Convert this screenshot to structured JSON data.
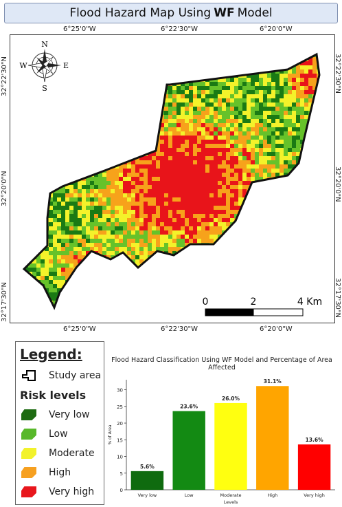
{
  "title": {
    "prefix": "Flood Hazard Map Using",
    "bold": "WF",
    "suffix": "Model"
  },
  "map": {
    "top_lon_labels": [
      "6°25'0\"W",
      "6°22'30\"W",
      "6°20'0\"W"
    ],
    "bottom_lon_labels": [
      "6°25'0\"W",
      "6°22'30\"W",
      "6°20'0\"W"
    ],
    "left_lat_labels": [
      "32°22'30\"N",
      "32°20'0\"N",
      "32°17'30\"N"
    ],
    "right_lat_labels": [
      "32°22'30\"N",
      "32°20'0\"N",
      "32°17'30\"N"
    ],
    "compass": {
      "N": "N",
      "S": "S",
      "E": "E",
      "W": "W"
    },
    "scale": {
      "ticks": [
        "0",
        "2",
        "4 Km"
      ]
    },
    "colors": {
      "very_low": "#1a7a14",
      "low": "#66c22a",
      "moderate": "#f4f22a",
      "high": "#f7a21b",
      "very_high": "#e8141a"
    }
  },
  "legend": {
    "title": "Legend:",
    "study_area": "Study area",
    "risk_title": "Risk levels",
    "items": [
      {
        "label": "Very low",
        "color": "#1e6b12"
      },
      {
        "label": "Low",
        "color": "#58b82a"
      },
      {
        "label": "Moderate",
        "color": "#f2f22c"
      },
      {
        "label": "High",
        "color": "#f6a020"
      },
      {
        "label": "Very high",
        "color": "#e8161c"
      }
    ]
  },
  "chart_data": {
    "type": "bar",
    "title": "Flood Hazard Classification Using WF Model and Percentage of Area Affected",
    "xlabel": "Levels",
    "ylabel": "% of Area",
    "categories": [
      "Very low",
      "Low",
      "Moderate",
      "High",
      "Very high"
    ],
    "values": [
      5.6,
      23.6,
      26.0,
      31.1,
      13.6
    ],
    "value_labels": [
      "5.6%",
      "23.6%",
      "26.0%",
      "31.1%",
      "13.6%"
    ],
    "colors": [
      "#0f6b0f",
      "#138a13",
      "#ffff10",
      "#ffa500",
      "#ff0000"
    ],
    "ylim": [
      0,
      33
    ],
    "yticks": [
      0,
      5,
      10,
      15,
      20,
      25,
      30
    ]
  }
}
